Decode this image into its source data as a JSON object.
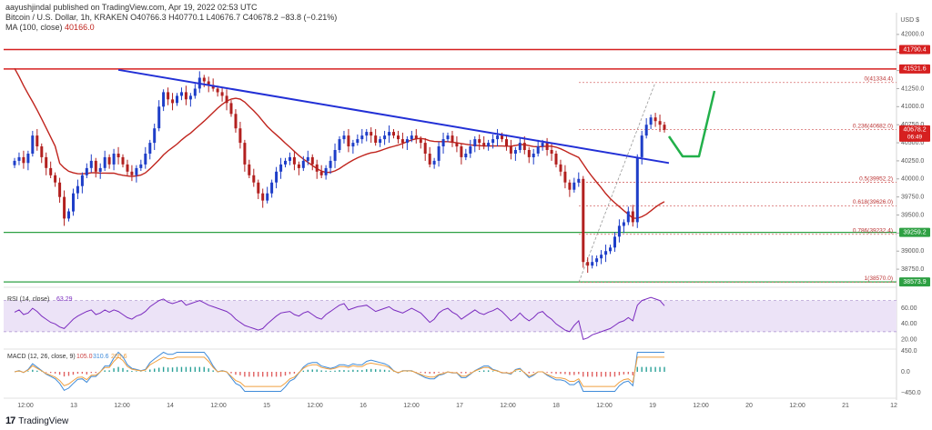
{
  "publisher": "aayushjindal published on TradingView.com, Apr 19, 2022 02:53 UTC",
  "symbol_line": {
    "name": "Bitcoin / U.S. Dollar, 1h, KRAKEN",
    "ohlc": "O40766.3 H40770.1 L40676.7 C40678.2 −83.8 (−0.21%)",
    "ma_label": "MA (100, close)",
    "ma_value": "40166.0"
  },
  "currency": "USD",
  "brand": "TradingView",
  "colors": {
    "up": "#1e3ec8",
    "down": "#b2201f",
    "ma": "#c0241d",
    "trendline": "#2230d6",
    "resistance": "#d62020",
    "support": "#2ea043",
    "fib": "#d66a6a",
    "rsi": "#7b2cbf",
    "rsi_band": "#ece3f7",
    "macd": "#3f8bd9",
    "signal": "#f0a040",
    "arrow": "#22b04a"
  },
  "chart_data": {
    "type": "candlestick",
    "symbol": "Bitcoin / U.S. Dollar, 1h, KRAKEN",
    "x_ticks": [
      "12:00",
      "13",
      "12:00",
      "14",
      "12:00",
      "15",
      "12:00",
      "16",
      "12:00",
      "17",
      "12:00",
      "18",
      "12:00",
      "19",
      "12:00",
      "20",
      "12:00",
      "21",
      "12"
    ],
    "y_ticks": [
      38750,
      39000,
      39250,
      39500,
      39750,
      40000,
      40250,
      40500,
      40750,
      41000,
      41250,
      41500,
      41750,
      42000
    ],
    "y_tick_labels": [
      "38750.0",
      "39000.0",
      "39250.0",
      "39500.0",
      "39750.0",
      "40000.0",
      "40250.0",
      "40500.0",
      "40750.0",
      "41000.0",
      "41250.0",
      "41500.0",
      "41750.0",
      "42000.0"
    ],
    "ylim": [
      38550,
      42250
    ],
    "closes": [
      40250,
      40300,
      40220,
      40350,
      40600,
      40450,
      40300,
      40150,
      40050,
      39950,
      39750,
      39450,
      39550,
      39800,
      39900,
      40050,
      40150,
      40250,
      40100,
      40150,
      40300,
      40200,
      40350,
      40300,
      40200,
      40100,
      40050,
      40150,
      40200,
      40350,
      40500,
      40700,
      41000,
      41200,
      41100,
      41050,
      41150,
      41200,
      41100,
      41150,
      41250,
      41400,
      41350,
      41300,
      41250,
      41200,
      41150,
      41050,
      40900,
      40700,
      40500,
      40200,
      40050,
      39950,
      39800,
      39700,
      39800,
      39950,
      40100,
      40200,
      40250,
      40300,
      40200,
      40150,
      40250,
      40300,
      40200,
      40100,
      40050,
      40150,
      40250,
      40400,
      40550,
      40600,
      40450,
      40500,
      40550,
      40600,
      40650,
      40600,
      40500,
      40550,
      40600,
      40650,
      40600,
      40550,
      40500,
      40550,
      40600,
      40550,
      40500,
      40350,
      40200,
      40250,
      40450,
      40550,
      40600,
      40500,
      40450,
      40300,
      40350,
      40450,
      40550,
      40500,
      40450,
      40500,
      40550,
      40600,
      40550,
      40450,
      40350,
      40400,
      40500,
      40400,
      40300,
      40350,
      40450,
      40500,
      40400,
      40350,
      40200,
      40100,
      39950,
      39850,
      39950,
      40000,
      38850,
      38800,
      38850,
      38900,
      38950,
      39000,
      39050,
      39200,
      39350,
      39400,
      39550,
      39400,
      40300,
      40600,
      40750,
      40850,
      40800,
      40750,
      40680
    ],
    "ma_label": "MA (100, close)",
    "ma_last": 40166.0,
    "trendline": {
      "from": [
        23,
        41510
      ],
      "to": [
        145,
        40220
      ]
    },
    "resistance_levels": [
      41790.4,
      41521.6
    ],
    "support_levels": [
      39259.2,
      38573.9
    ],
    "fibonacci": [
      {
        "level": "0",
        "price": 41334.4,
        "label": "0(41334.4)"
      },
      {
        "level": "0.236",
        "price": 40682.0,
        "label": "0.236(40682.0)"
      },
      {
        "level": "0.5",
        "price": 39952.2,
        "label": "0.5(39952.2)"
      },
      {
        "level": "0.618",
        "price": 39626.0,
        "label": "0.618(39626.0)"
      },
      {
        "level": "0.786",
        "price": 39232.4,
        "label": "0.786(39232.4)"
      },
      {
        "level": "1",
        "price": 38570.0,
        "label": "1(38570.0)"
      }
    ],
    "price_badges": [
      {
        "price": 41790.4,
        "label": "41790.4",
        "color": "#d62020"
      },
      {
        "price": 41521.6,
        "label": "41521.6",
        "color": "#d62020"
      },
      {
        "price": 40678.2,
        "label": "40678.2",
        "sub": "06:49",
        "color": "#d62020"
      },
      {
        "price": 39259.2,
        "label": "39259.2",
        "color": "#2ea043"
      },
      {
        "price": 38573.9,
        "label": "38573.9",
        "color": "#2ea043"
      }
    ],
    "rsi": {
      "label": "RSI (14, close)",
      "last": 63.29,
      "ticks": [
        20,
        40,
        60
      ],
      "tick_labels": [
        "20.00",
        "40.00",
        "60.00"
      ],
      "band": [
        30,
        70
      ],
      "values": [
        55,
        58,
        52,
        54,
        60,
        56,
        50,
        46,
        42,
        40,
        36,
        34,
        40,
        46,
        50,
        53,
        56,
        58,
        52,
        54,
        58,
        55,
        58,
        56,
        52,
        48,
        46,
        50,
        52,
        56,
        62,
        66,
        70,
        72,
        68,
        66,
        68,
        70,
        64,
        66,
        68,
        70,
        67,
        64,
        62,
        60,
        58,
        56,
        52,
        46,
        42,
        38,
        36,
        34,
        32,
        34,
        40,
        45,
        50,
        54,
        55,
        56,
        52,
        50,
        54,
        56,
        52,
        48,
        46,
        52,
        56,
        60,
        64,
        66,
        58,
        60,
        62,
        63,
        64,
        60,
        56,
        58,
        60,
        62,
        58,
        56,
        54,
        57,
        60,
        57,
        54,
        48,
        42,
        46,
        54,
        58,
        60,
        55,
        52,
        46,
        50,
        54,
        58,
        54,
        52,
        55,
        57,
        60,
        56,
        50,
        44,
        48,
        54,
        48,
        44,
        48,
        54,
        56,
        50,
        46,
        40,
        36,
        32,
        30,
        38,
        44,
        20,
        22,
        26,
        28,
        30,
        32,
        34,
        38,
        42,
        44,
        48,
        44,
        64,
        70,
        72,
        74,
        72,
        70,
        63.29
      ]
    },
    "macd": {
      "label": "MACD (12, 26, close, 9)",
      "values_text": [
        "105.0",
        "310.6",
        "205.6"
      ],
      "ticks": [
        -450,
        0,
        450
      ],
      "tick_labels": [
        "−450.0",
        "0.0",
        "450.0"
      ],
      "macd_last": 310.6,
      "signal_last": 205.6,
      "hist_last": 105.0
    }
  }
}
